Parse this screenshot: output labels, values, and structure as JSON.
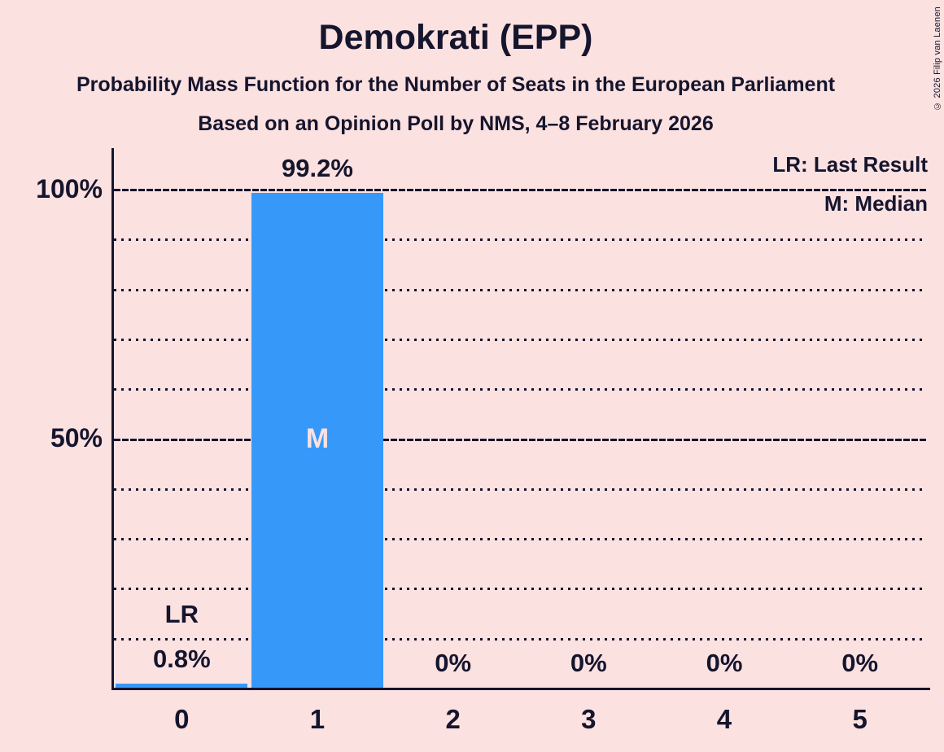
{
  "page": {
    "title": "Demokrati (EPP)",
    "subtitle": "Probability Mass Function for the Number of Seats in the European Parliament",
    "source_line": "Based on an Opinion Poll by NMS, 4–8 February 2026",
    "copyright": "© 2026 Filip van Laenen"
  },
  "legend": {
    "last_result": "LR: Last Result",
    "median": "M: Median"
  },
  "colors": {
    "background": "#fce1e1",
    "bar": "#3699fa",
    "text": "#15152d",
    "label_on_bar": "#fce1e1"
  },
  "chart_data": {
    "type": "bar",
    "title": "Demokrati (EPP)",
    "categories": [
      "0",
      "1",
      "2",
      "3",
      "4",
      "5"
    ],
    "values": [
      0.8,
      99.2,
      0,
      0,
      0,
      0
    ],
    "value_labels": [
      "0.8%",
      "99.2%",
      "0%",
      "0%",
      "0%",
      "0%"
    ],
    "xlabel": "",
    "ylabel": "",
    "ylim": [
      0,
      100
    ],
    "yticks": [
      {
        "pct": 100,
        "label": "100%"
      },
      {
        "pct": 50,
        "label": "50%"
      }
    ],
    "grid": {
      "dotted_every_pct": 10,
      "solid_pct": [
        50,
        100
      ],
      "gridlines_behind_bars": true
    },
    "annotations": [
      {
        "category": "0",
        "text": "LR",
        "meaning": "Last Result",
        "placement": "above-value-label"
      },
      {
        "category": "1",
        "text": "M",
        "meaning": "Median",
        "placement": "inside-bar-at-50pct"
      }
    ],
    "legend_position": "top-right"
  }
}
